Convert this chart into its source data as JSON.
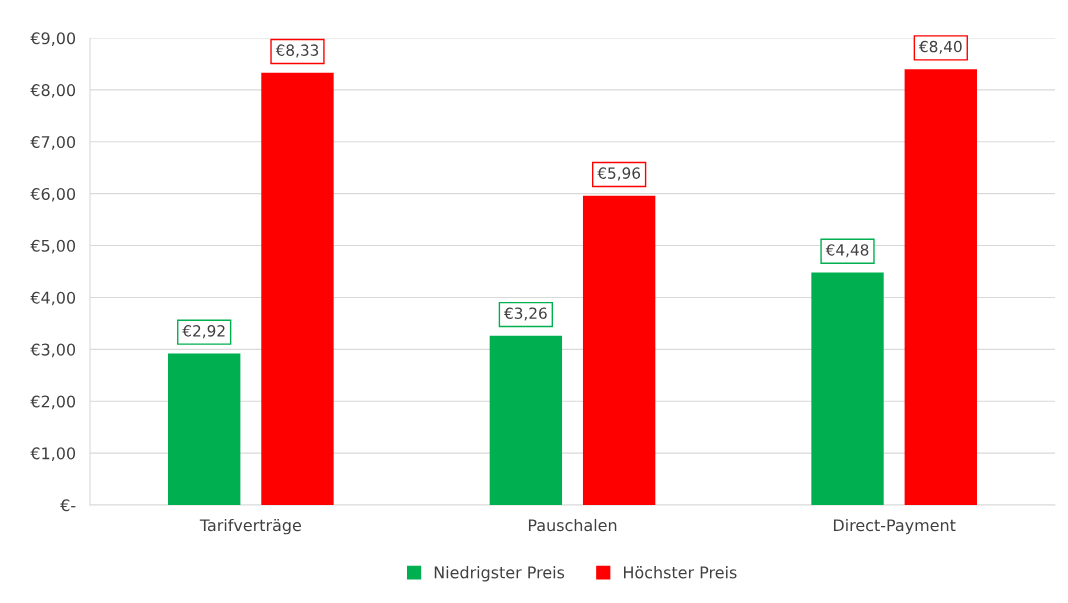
{
  "chart_data": {
    "type": "bar",
    "categories": [
      "Tarifverträge",
      "Pauschalen",
      "Direct-Payment"
    ],
    "series": [
      {
        "name": "Niedrigster Preis",
        "color": "#00b050",
        "values": [
          2.92,
          3.26,
          4.48
        ],
        "value_labels": [
          "€2,92",
          "€3,26",
          "€4,48"
        ]
      },
      {
        "name": "Höchster Preis",
        "color": "#ff0000",
        "values": [
          8.33,
          5.96,
          8.4
        ],
        "value_labels": [
          "€8,33",
          "€5,96",
          "€8,40"
        ]
      }
    ],
    "ylim": [
      0,
      9
    ],
    "yticks": [
      {
        "value": 0,
        "label": "€-"
      },
      {
        "value": 1,
        "label": "€1,00"
      },
      {
        "value": 2,
        "label": "€2,00"
      },
      {
        "value": 3,
        "label": "€3,00"
      },
      {
        "value": 4,
        "label": "€4,00"
      },
      {
        "value": 5,
        "label": "€5,00"
      },
      {
        "value": 6,
        "label": "€6,00"
      },
      {
        "value": 7,
        "label": "€7,00"
      },
      {
        "value": 8,
        "label": "€8,00"
      },
      {
        "value": 9,
        "label": "€9,00"
      }
    ],
    "grid": "y",
    "legend": "bottom"
  }
}
